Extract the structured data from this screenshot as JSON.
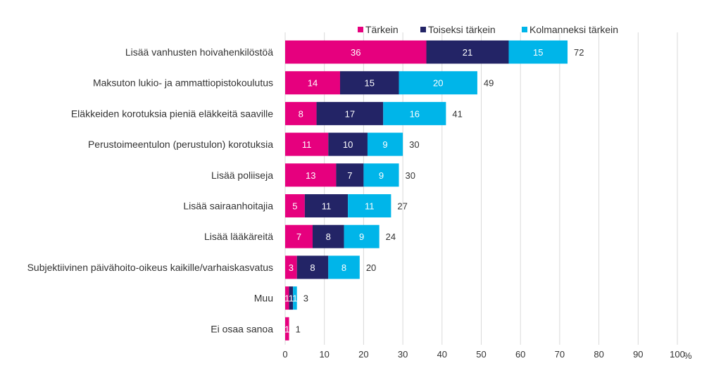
{
  "chart_data": {
    "type": "bar",
    "orientation": "horizontal",
    "stacked": true,
    "categories": [
      "Lisää vanhusten hoivahenkilöstöä",
      "Maksuton lukio- ja ammattiopistokoulutus",
      "Eläkkeiden korotuksia pieniä eläkkeitä saaville",
      "Perustoimeentulon (perustulon) korotuksia",
      "Lisää poliiseja",
      "Lisää sairaanhoitajia",
      "Lisää lääkäreitä",
      "Subjektiivinen päivähoito-oikeus kaikille/varhaiskasvatus",
      "Muu",
      "Ei osaa sanoa"
    ],
    "series": [
      {
        "name": "Tärkein",
        "color": "#e6007e",
        "values": [
          36,
          14,
          8,
          11,
          13,
          5,
          7,
          3,
          1,
          1
        ]
      },
      {
        "name": "Toiseksi tärkein",
        "color": "#232466",
        "values": [
          21,
          15,
          17,
          10,
          7,
          11,
          8,
          8,
          1,
          null
        ]
      },
      {
        "name": "Kolmanneksi tärkein",
        "color": "#00b5e9",
        "values": [
          15,
          20,
          16,
          9,
          9,
          11,
          9,
          8,
          1,
          null
        ]
      }
    ],
    "totals": [
      72,
      49,
      41,
      30,
      30,
      27,
      24,
      20,
      3,
      1
    ],
    "xlim": [
      0,
      100
    ],
    "xticks": [
      "0",
      "10",
      "20",
      "30",
      "40",
      "50",
      "60",
      "70",
      "80",
      "90",
      "100"
    ],
    "xunit": "%",
    "grid": "vertical",
    "legend_position": "top"
  }
}
